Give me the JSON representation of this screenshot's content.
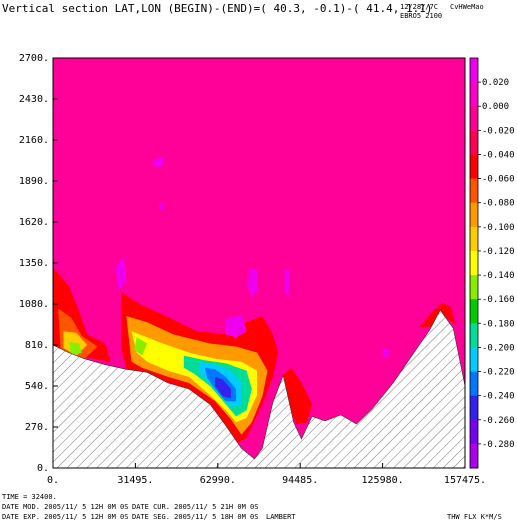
{
  "header": {
    "title": "Vertical section LAT,LON (BEGIN)-(END)=( 40.3, -0.1)-( 41.4, 1.1)",
    "date_code": "12/28//7C",
    "run_id": "EBRO5 2100",
    "brand": "CvHWeMao"
  },
  "chart_data": {
    "type": "heatmap",
    "title": "Vertical section LAT,LON (BEGIN)-(END)=( 40.3, -0.1)-( 41.4, 1.1)",
    "xlabel": "",
    "ylabel": "",
    "xlim": [
      0,
      157475
    ],
    "ylim": [
      0,
      2700
    ],
    "x_ticks": [
      0,
      31495,
      62990,
      94485,
      125980,
      157475
    ],
    "x_tick_labels": [
      "0.",
      "31495.",
      "62990.",
      "94485.",
      "125980.",
      "157475."
    ],
    "y_ticks": [
      0,
      270,
      540,
      810,
      1080,
      1350,
      1620,
      1890,
      2160,
      2430,
      2700
    ],
    "y_tick_labels": [
      "0.",
      "270.",
      "540.",
      "810.",
      "1080.",
      "1350.",
      "1620.",
      "1890.",
      "2160.",
      "2430.",
      "2700."
    ],
    "colorbar": {
      "levels": [
        0.02,
        0.0,
        -0.02,
        -0.04,
        -0.06,
        -0.08,
        -0.1,
        -0.12,
        -0.14,
        -0.16,
        -0.18,
        -0.2,
        -0.22,
        -0.24,
        -0.26,
        -0.28
      ],
      "labels": [
        "0.020",
        "0.000",
        "-0.020",
        "-0.040",
        "-0.060",
        "-0.080",
        "-0.100",
        "-0.120",
        "-0.140",
        "-0.160",
        "-0.180",
        "-0.200",
        "-0.220",
        "-0.240",
        "-0.260",
        "-0.280"
      ],
      "colors": [
        "#ee00ee",
        "#ff00cc",
        "#ff0099",
        "#ff0055",
        "#ff0000",
        "#ff5500",
        "#ff9900",
        "#ffcc00",
        "#ffff00",
        "#88ee00",
        "#00cc00",
        "#00dd99",
        "#00ccff",
        "#0077ff",
        "#3322ee",
        "#7700ee",
        "#aa00ee"
      ]
    },
    "background_value_color": "#ff0099",
    "terrain_profile": [
      {
        "x": 0,
        "y": 810
      },
      {
        "x": 6000,
        "y": 760
      },
      {
        "x": 12000,
        "y": 720
      },
      {
        "x": 20000,
        "y": 680
      },
      {
        "x": 28000,
        "y": 650
      },
      {
        "x": 36000,
        "y": 630
      },
      {
        "x": 44000,
        "y": 560
      },
      {
        "x": 52000,
        "y": 520
      },
      {
        "x": 60000,
        "y": 420
      },
      {
        "x": 66000,
        "y": 280
      },
      {
        "x": 72000,
        "y": 130
      },
      {
        "x": 77000,
        "y": 60
      },
      {
        "x": 80000,
        "y": 130
      },
      {
        "x": 84000,
        "y": 430
      },
      {
        "x": 88000,
        "y": 610
      },
      {
        "x": 92000,
        "y": 300
      },
      {
        "x": 95000,
        "y": 190
      },
      {
        "x": 99000,
        "y": 340
      },
      {
        "x": 104000,
        "y": 310
      },
      {
        "x": 110000,
        "y": 350
      },
      {
        "x": 116000,
        "y": 290
      },
      {
        "x": 122000,
        "y": 390
      },
      {
        "x": 130000,
        "y": 560
      },
      {
        "x": 138000,
        "y": 760
      },
      {
        "x": 144000,
        "y": 910
      },
      {
        "x": 148000,
        "y": 1040
      },
      {
        "x": 153000,
        "y": 920
      },
      {
        "x": 157475,
        "y": 540
      }
    ],
    "anomalies": [
      {
        "color": "#ff0000",
        "points": [
          [
            0,
            1320
          ],
          [
            6000,
            1200
          ],
          [
            10000,
            1030
          ],
          [
            13000,
            880
          ],
          [
            20000,
            820
          ],
          [
            22000,
            700
          ],
          [
            6000,
            750
          ],
          [
            0,
            810
          ]
        ]
      },
      {
        "color": "#ff5500",
        "points": [
          [
            2000,
            1050
          ],
          [
            7000,
            990
          ],
          [
            11000,
            870
          ],
          [
            17000,
            800
          ],
          [
            12000,
            720
          ],
          [
            3000,
            770
          ]
        ]
      },
      {
        "color": "#ffcc00",
        "points": [
          [
            4000,
            900
          ],
          [
            9000,
            890
          ],
          [
            13000,
            810
          ],
          [
            9000,
            740
          ],
          [
            4000,
            790
          ]
        ]
      },
      {
        "color": "#88ee00",
        "points": [
          [
            6000,
            830
          ],
          [
            10000,
            820
          ],
          [
            11000,
            760
          ],
          [
            7000,
            740
          ]
        ]
      },
      {
        "color": "#ff0000",
        "points": [
          [
            26000,
            1160
          ],
          [
            33000,
            1080
          ],
          [
            42000,
            1010
          ],
          [
            55000,
            900
          ],
          [
            68000,
            880
          ],
          [
            74000,
            960
          ],
          [
            80000,
            1000
          ],
          [
            84000,
            880
          ],
          [
            86000,
            760
          ],
          [
            84000,
            600
          ],
          [
            80000,
            420
          ],
          [
            74000,
            200
          ],
          [
            70000,
            160
          ],
          [
            66000,
            280
          ],
          [
            60000,
            420
          ],
          [
            52000,
            520
          ],
          [
            44000,
            560
          ],
          [
            36000,
            630
          ],
          [
            28000,
            650
          ],
          [
            26000,
            800
          ]
        ]
      },
      {
        "color": "#ff9900",
        "points": [
          [
            28000,
            1000
          ],
          [
            36000,
            960
          ],
          [
            46000,
            880
          ],
          [
            60000,
            820
          ],
          [
            70000,
            800
          ],
          [
            78000,
            760
          ],
          [
            82000,
            640
          ],
          [
            80000,
            470
          ],
          [
            76000,
            300
          ],
          [
            72000,
            220
          ],
          [
            68000,
            320
          ],
          [
            62000,
            440
          ],
          [
            52000,
            560
          ],
          [
            44000,
            600
          ],
          [
            34000,
            660
          ],
          [
            30000,
            700
          ]
        ]
      },
      {
        "color": "#ffff00",
        "points": [
          [
            30000,
            900
          ],
          [
            36000,
            860
          ],
          [
            42000,
            820
          ],
          [
            52000,
            760
          ],
          [
            62000,
            720
          ],
          [
            72000,
            700
          ],
          [
            78000,
            640
          ],
          [
            78000,
            480
          ],
          [
            74000,
            330
          ],
          [
            70000,
            300
          ],
          [
            66000,
            380
          ],
          [
            60000,
            480
          ],
          [
            52000,
            600
          ],
          [
            44000,
            640
          ],
          [
            36000,
            700
          ],
          [
            32000,
            760
          ]
        ]
      },
      {
        "color": "#88ee00",
        "points": [
          [
            32000,
            860
          ],
          [
            36000,
            820
          ],
          [
            34000,
            740
          ],
          [
            31000,
            780
          ]
        ]
      },
      {
        "color": "#00dd99",
        "points": [
          [
            50000,
            740
          ],
          [
            58000,
            710
          ],
          [
            66000,
            690
          ],
          [
            74000,
            640
          ],
          [
            76000,
            520
          ],
          [
            74000,
            380
          ],
          [
            70000,
            340
          ],
          [
            66000,
            420
          ],
          [
            60000,
            540
          ],
          [
            54000,
            620
          ],
          [
            50000,
            660
          ]
        ]
      },
      {
        "color": "#00ccff",
        "points": [
          [
            56000,
            700
          ],
          [
            62000,
            680
          ],
          [
            68000,
            640
          ],
          [
            72000,
            560
          ],
          [
            72000,
            420
          ],
          [
            68000,
            400
          ],
          [
            64000,
            480
          ],
          [
            60000,
            560
          ],
          [
            56000,
            620
          ]
        ]
      },
      {
        "color": "#0077ff",
        "points": [
          [
            58000,
            660
          ],
          [
            62000,
            650
          ],
          [
            66000,
            600
          ],
          [
            70000,
            520
          ],
          [
            70000,
            440
          ],
          [
            66000,
            440
          ],
          [
            62000,
            520
          ],
          [
            59000,
            590
          ]
        ]
      },
      {
        "color": "#3322ee",
        "points": [
          [
            62000,
            600
          ],
          [
            65000,
            580
          ],
          [
            68000,
            520
          ],
          [
            68000,
            460
          ],
          [
            65000,
            470
          ],
          [
            62000,
            540
          ]
        ]
      },
      {
        "color": "#ff0000",
        "points": [
          [
            88000,
            610
          ],
          [
            91000,
            660
          ],
          [
            95000,
            560
          ],
          [
            99000,
            420
          ],
          [
            97000,
            300
          ],
          [
            93000,
            290
          ],
          [
            90000,
            420
          ]
        ]
      },
      {
        "color": "#ff0000",
        "points": [
          [
            140000,
            930
          ],
          [
            145000,
            1030
          ],
          [
            149000,
            1090
          ],
          [
            152000,
            1060
          ],
          [
            154000,
            940
          ],
          [
            149000,
            1010
          ],
          [
            145000,
            930
          ]
        ]
      },
      {
        "color": "#ee00ee",
        "points": [
          [
            24000,
            1320
          ],
          [
            27000,
            1400
          ],
          [
            28000,
            1230
          ],
          [
            25000,
            1170
          ]
        ]
      },
      {
        "color": "#ee00ee",
        "points": [
          [
            66000,
            980
          ],
          [
            72000,
            1010
          ],
          [
            74000,
            900
          ],
          [
            70000,
            860
          ],
          [
            66000,
            880
          ]
        ]
      },
      {
        "color": "#ee00ee",
        "points": [
          [
            75000,
            1320
          ],
          [
            78000,
            1300
          ],
          [
            78500,
            1180
          ],
          [
            76000,
            1120
          ],
          [
            74500,
            1200
          ]
        ]
      },
      {
        "color": "#ee00ee",
        "points": [
          [
            38000,
            2030
          ],
          [
            42000,
            2050
          ],
          [
            42500,
            1990
          ],
          [
            39000,
            1980
          ]
        ]
      },
      {
        "color": "#ee00ee",
        "points": [
          [
            40500,
            1740
          ],
          [
            42500,
            1750
          ],
          [
            42000,
            1700
          ],
          [
            40500,
            1710
          ]
        ]
      },
      {
        "color": "#ee00ee",
        "points": [
          [
            88500,
            1310
          ],
          [
            90500,
            1300
          ],
          [
            90000,
            1140
          ],
          [
            88500,
            1150
          ]
        ]
      },
      {
        "color": "#ee00ee",
        "points": [
          [
            126000,
            790
          ],
          [
            128500,
            780
          ],
          [
            128000,
            720
          ],
          [
            126000,
            730
          ]
        ]
      }
    ]
  },
  "footer": {
    "time_label": "TIME =   32400.",
    "date_mod": "DATE MOD. 2005/11/ 5  12H 0M 0S",
    "date_cur": "DATE CUR. 2005/11/ 5  21H 0M 0S",
    "date_exp": "DATE EXP. 2005/11/ 5  12H 0M 0S",
    "date_seg": "DATE SEG. 2005/11/ 5  18H 0M 0S",
    "projection": "LAMBERT",
    "variable": "THW FLX K*M/S"
  }
}
